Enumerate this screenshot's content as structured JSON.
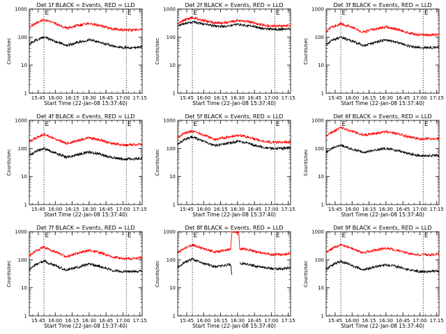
{
  "chart_data": [
    {
      "type": "line",
      "title": "Det 1f BLACK = Events, RED = LLD",
      "xlabel": "Start Time (22-Jan-08 15:37:40)",
      "ylabel": "Counts/sec",
      "ylim": [
        1,
        1000
      ],
      "yscale": "log",
      "yticks": [
        "1",
        "10",
        "100",
        "1000"
      ],
      "xticks": [
        "15:45",
        "16:00",
        "16:15",
        "16:30",
        "16:45",
        "17:00",
        "17:15"
      ],
      "xlim": [
        "15:37",
        "17:17"
      ],
      "markers": [
        {
          "time": "15:50",
          "label": "E"
        },
        {
          "time": "17:03",
          "label": "E"
        }
      ],
      "series": [
        {
          "color": "#ff0000",
          "x": [
            "15:37",
            "15:42",
            "15:50",
            "16:00",
            "16:10",
            "16:20",
            "16:30",
            "16:40",
            "16:50",
            "17:00",
            "17:10",
            "17:17"
          ],
          "values": [
            230,
            300,
            420,
            300,
            210,
            260,
            310,
            260,
            200,
            180,
            180,
            190
          ]
        },
        {
          "color": "#000000",
          "x": [
            "15:37",
            "15:42",
            "15:50",
            "16:00",
            "16:10",
            "16:20",
            "16:30",
            "16:40",
            "16:50",
            "17:00",
            "17:10",
            "17:17"
          ],
          "values": [
            55,
            75,
            100,
            70,
            50,
            65,
            80,
            65,
            50,
            42,
            42,
            45
          ]
        }
      ]
    },
    {
      "type": "line",
      "title": "Det 2f BLACK = Events, RED = LLD",
      "xlabel": "Start Time (22-Jan-08 15:37:40)",
      "ylabel": "Counts/sec",
      "ylim": [
        1,
        1000
      ],
      "yscale": "log",
      "yticks": [
        "1",
        "10",
        "100",
        "1000"
      ],
      "xticks": [
        "15:45",
        "16:00",
        "16:15",
        "16:30",
        "16:45",
        "17:00",
        "17:15"
      ],
      "xlim": [
        "15:37",
        "17:17"
      ],
      "markers": [
        {
          "time": "15:50",
          "label": "E"
        },
        {
          "time": "17:03",
          "label": "E"
        }
      ],
      "series": [
        {
          "color": "#ff0000",
          "x": [
            "15:37",
            "15:42",
            "15:50",
            "16:00",
            "16:10",
            "16:20",
            "16:30",
            "16:40",
            "16:50",
            "17:00",
            "17:10",
            "17:17"
          ],
          "values": [
            300,
            400,
            500,
            390,
            320,
            330,
            390,
            350,
            280,
            250,
            250,
            260
          ]
        },
        {
          "color": "#000000",
          "x": [
            "15:37",
            "15:42",
            "15:50",
            "16:00",
            "16:10",
            "16:20",
            "16:30",
            "16:40",
            "16:50",
            "17:00",
            "17:10",
            "17:17"
          ],
          "values": [
            240,
            300,
            350,
            290,
            250,
            240,
            280,
            260,
            210,
            190,
            190,
            195
          ]
        }
      ]
    },
    {
      "type": "line",
      "title": "Det 3f BLACK = Events, RED = LLD",
      "xlabel": "Start Time (22-Jan-08 15:37:40)",
      "ylabel": "Counts/sec",
      "ylim": [
        1,
        1000
      ],
      "yscale": "log",
      "yticks": [
        "1",
        "10",
        "100",
        "1000"
      ],
      "xticks": [
        "15:45",
        "16:00",
        "16:15",
        "16:30",
        "16:45",
        "17:00",
        "17:15"
      ],
      "xlim": [
        "15:37",
        "17:17"
      ],
      "markers": [
        {
          "time": "15:50",
          "label": "E"
        },
        {
          "time": "17:03",
          "label": "E"
        }
      ],
      "series": [
        {
          "color": "#ff0000",
          "x": [
            "15:37",
            "15:42",
            "15:50",
            "16:00",
            "16:10",
            "16:20",
            "16:30",
            "16:40",
            "16:50",
            "17:00",
            "17:10",
            "17:17"
          ],
          "values": [
            160,
            220,
            300,
            220,
            150,
            190,
            230,
            190,
            140,
            120,
            120,
            125
          ]
        },
        {
          "color": "#000000",
          "x": [
            "15:37",
            "15:42",
            "15:50",
            "16:00",
            "16:10",
            "16:20",
            "16:30",
            "16:40",
            "16:50",
            "17:00",
            "17:10",
            "17:17"
          ],
          "values": [
            55,
            75,
            100,
            72,
            50,
            65,
            80,
            65,
            48,
            42,
            42,
            45
          ]
        }
      ]
    },
    {
      "type": "line",
      "title": "Det 4f BLACK = Events, RED = LLD",
      "xlabel": "Start Time (22-Jan-08 15:37:40)",
      "ylabel": "Counts/sec",
      "ylim": [
        1,
        1000
      ],
      "yscale": "log",
      "yticks": [
        "1",
        "10",
        "100",
        "1000"
      ],
      "xticks": [
        "15:45",
        "16:00",
        "16:15",
        "16:30",
        "16:45",
        "17:00",
        "17:15"
      ],
      "xlim": [
        "15:37",
        "17:17"
      ],
      "markers": [
        {
          "time": "15:50",
          "label": "E"
        },
        {
          "time": "17:03",
          "label": "E"
        }
      ],
      "series": [
        {
          "color": "#ff0000",
          "x": [
            "15:37",
            "15:42",
            "15:50",
            "16:00",
            "16:10",
            "16:20",
            "16:30",
            "16:40",
            "16:50",
            "17:00",
            "17:10",
            "17:17"
          ],
          "values": [
            170,
            230,
            320,
            220,
            150,
            190,
            240,
            200,
            150,
            135,
            135,
            140
          ]
        },
        {
          "color": "#000000",
          "x": [
            "15:37",
            "15:42",
            "15:50",
            "16:00",
            "16:10",
            "16:20",
            "16:30",
            "16:40",
            "16:50",
            "17:00",
            "17:10",
            "17:17"
          ],
          "values": [
            55,
            75,
            100,
            70,
            48,
            60,
            75,
            62,
            48,
            42,
            42,
            45
          ]
        }
      ]
    },
    {
      "type": "line",
      "title": "Det 5f BLACK = Events, RED = LLD",
      "xlabel": "Start Time (22-Jan-08 15:37:40)",
      "ylabel": "Counts/sec",
      "ylim": [
        1,
        1000
      ],
      "yscale": "log",
      "yticks": [
        "1",
        "10",
        "100",
        "1000"
      ],
      "xticks": [
        "15:45",
        "16:00",
        "16:15",
        "16:30",
        "16:45",
        "17:00",
        "17:15"
      ],
      "xlim": [
        "15:37",
        "17:17"
      ],
      "markers": [
        {
          "time": "15:50",
          "label": "E"
        },
        {
          "time": "17:03",
          "label": "E"
        }
      ],
      "series": [
        {
          "color": "#ff0000",
          "x": [
            "15:37",
            "15:42",
            "15:50",
            "16:00",
            "16:10",
            "16:20",
            "16:30",
            "16:40",
            "16:50",
            "17:00",
            "17:10",
            "17:17"
          ],
          "values": [
            240,
            330,
            420,
            300,
            210,
            250,
            300,
            250,
            190,
            165,
            165,
            175
          ]
        },
        {
          "color": "#000000",
          "x": [
            "15:37",
            "15:42",
            "15:50",
            "16:00",
            "16:10",
            "16:20",
            "16:30",
            "16:40",
            "16:50",
            "17:00",
            "17:10",
            "17:17"
          ],
          "values": [
            140,
            200,
            260,
            180,
            125,
            150,
            180,
            150,
            115,
            100,
            100,
            105
          ]
        }
      ]
    },
    {
      "type": "line",
      "title": "Det 6f BLACK = Events, RED = LLD",
      "xlabel": "Start Time (22-Jan-08 15:37:40)",
      "ylabel": "Counts/sec",
      "ylim": [
        1,
        1000
      ],
      "yscale": "log",
      "yticks": [
        "1",
        "10",
        "100",
        "1000"
      ],
      "xticks": [
        "15:45",
        "16:00",
        "16:15",
        "16:30",
        "16:45",
        "17:00",
        "17:15"
      ],
      "xlim": [
        "15:37",
        "17:17"
      ],
      "markers": [
        {
          "time": "15:50",
          "label": "E"
        },
        {
          "time": "17:03",
          "label": "E"
        }
      ],
      "series": [
        {
          "color": "#ff0000",
          "x": [
            "15:37",
            "15:42",
            "15:50",
            "16:00",
            "16:10",
            "16:20",
            "16:30",
            "16:40",
            "16:50",
            "17:00",
            "17:10",
            "17:17"
          ],
          "values": [
            280,
            380,
            550,
            400,
            300,
            340,
            400,
            340,
            260,
            220,
            220,
            230
          ]
        },
        {
          "color": "#000000",
          "x": [
            "15:37",
            "15:42",
            "15:50",
            "16:00",
            "16:10",
            "16:20",
            "16:30",
            "16:40",
            "16:50",
            "17:00",
            "17:10",
            "17:17"
          ],
          "values": [
            75,
            100,
            130,
            95,
            72,
            85,
            100,
            85,
            65,
            55,
            55,
            58
          ]
        }
      ]
    },
    {
      "type": "line",
      "title": "Det 7f BLACK = Events, RED = LLD",
      "xlabel": "Start Time (22-Jan-08 15:37:40)",
      "ylabel": "Counts/sec",
      "ylim": [
        1,
        1000
      ],
      "yscale": "log",
      "yticks": [
        "1",
        "10",
        "100",
        "1000"
      ],
      "xticks": [
        "15:45",
        "16:00",
        "16:15",
        "16:30",
        "16:45",
        "17:00",
        "17:15"
      ],
      "xlim": [
        "15:37",
        "17:17"
      ],
      "markers": [
        {
          "time": "15:50",
          "label": "E"
        },
        {
          "time": "17:03",
          "label": "E"
        }
      ],
      "series": [
        {
          "color": "#ff0000",
          "x": [
            "15:37",
            "15:42",
            "15:50",
            "16:00",
            "16:10",
            "16:20",
            "16:30",
            "16:40",
            "16:50",
            "17:00",
            "17:10",
            "17:17"
          ],
          "values": [
            140,
            200,
            280,
            190,
            130,
            170,
            220,
            180,
            130,
            110,
            110,
            120
          ]
        },
        {
          "color": "#000000",
          "x": [
            "15:37",
            "15:42",
            "15:50",
            "16:00",
            "16:10",
            "16:20",
            "16:30",
            "16:40",
            "16:50",
            "17:00",
            "17:10",
            "17:17"
          ],
          "values": [
            45,
            65,
            90,
            62,
            42,
            55,
            70,
            58,
            42,
            38,
            38,
            40
          ]
        }
      ]
    },
    {
      "type": "line",
      "title": "Det 8f BLACK = Events, RED = LLD",
      "xlabel": "Start Time (22-Jan-08 15:37:40)",
      "ylabel": "Counts/sec",
      "ylim": [
        1,
        1000
      ],
      "yscale": "log",
      "yticks": [
        "1",
        "10",
        "100",
        "1000"
      ],
      "xticks": [
        "15:45",
        "16:00",
        "16:15",
        "16:30",
        "16:45",
        "17:00",
        "17:15"
      ],
      "xlim": [
        "15:37",
        "17:17"
      ],
      "markers": [
        {
          "time": "15:50",
          "label": "E"
        },
        {
          "time": "17:03",
          "label": "E"
        }
      ],
      "series": [
        {
          "color": "#ff0000",
          "x": [
            "15:37",
            "15:42",
            "15:50",
            "16:00",
            "16:10",
            "16:20",
            "16:24",
            "16:25",
            "16:31",
            "16:32",
            "16:40",
            "16:50",
            "17:00",
            "17:10",
            "17:17"
          ],
          "values": [
            180,
            250,
            340,
            250,
            190,
            220,
            250,
            1000,
            1000,
            250,
            230,
            180,
            155,
            155,
            165
          ]
        },
        {
          "color": "#000000",
          "x": [
            "15:37",
            "15:42",
            "15:50",
            "16:00",
            "16:10",
            "16:20",
            "16:24",
            "16:25",
            "16:31",
            "16:32",
            "16:40",
            "16:50",
            "17:00",
            "17:10",
            "17:17"
          ],
          "values": [
            55,
            75,
            105,
            75,
            55,
            65,
            70,
            25,
            null,
            75,
            68,
            55,
            48,
            48,
            52
          ]
        }
      ]
    },
    {
      "type": "line",
      "title": "Det 9f BLACK = Events, RED = LLD",
      "xlabel": "Start Time (22-Jan-08 15:37:40)",
      "ylabel": "Counts/sec",
      "ylim": [
        1,
        1000
      ],
      "yscale": "log",
      "yticks": [
        "1",
        "10",
        "100",
        "1000"
      ],
      "xticks": [
        "15:45",
        "16:00",
        "16:15",
        "16:30",
        "16:45",
        "17:00",
        "17:15"
      ],
      "xlim": [
        "15:37",
        "17:17"
      ],
      "markers": [
        {
          "time": "15:50",
          "label": "E"
        },
        {
          "time": "17:03",
          "label": "E"
        }
      ],
      "series": [
        {
          "color": "#ff0000",
          "x": [
            "15:37",
            "15:42",
            "15:50",
            "16:00",
            "16:10",
            "16:20",
            "16:30",
            "16:40",
            "16:50",
            "17:00",
            "17:10",
            "17:17"
          ],
          "values": [
            180,
            250,
            350,
            250,
            180,
            220,
            260,
            220,
            170,
            150,
            150,
            160
          ]
        },
        {
          "color": "#000000",
          "x": [
            "15:37",
            "15:42",
            "15:50",
            "16:00",
            "16:10",
            "16:20",
            "16:30",
            "16:40",
            "16:50",
            "17:00",
            "17:10",
            "17:17"
          ],
          "values": [
            45,
            65,
            90,
            62,
            44,
            55,
            68,
            57,
            44,
            38,
            38,
            40
          ]
        }
      ]
    }
  ]
}
